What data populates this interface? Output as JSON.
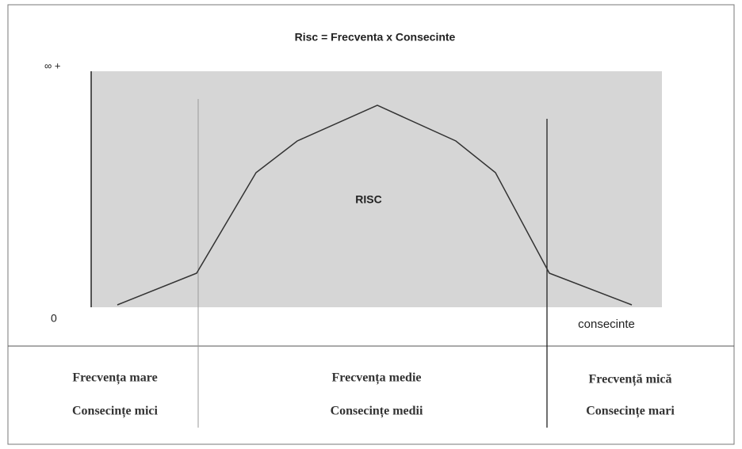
{
  "title": "Risc = Frecventa x Consecinte",
  "axis_top_label": "∞ +",
  "axis_origin_label": "0",
  "x_axis_label": "consecinte",
  "area_label": "RISC",
  "zones": [
    {
      "frequency": "Frecvența mare",
      "consequence": "Consecințe mici"
    },
    {
      "frequency": "Frecvența medie",
      "consequence": "Consecințe medii"
    },
    {
      "frequency": "Frecvență mică",
      "consequence": "Consecințe mari"
    }
  ]
}
